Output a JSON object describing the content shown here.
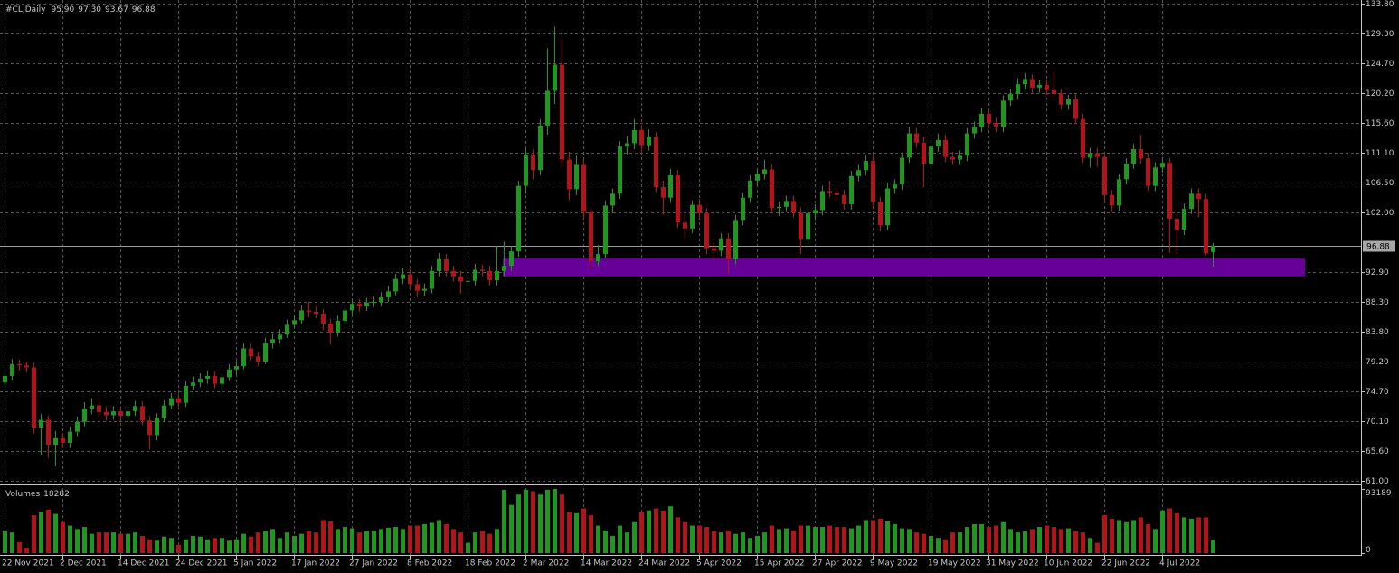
{
  "chart_data": {
    "type": "candlestick",
    "header": {
      "symbol": "#CL,Daily",
      "values": [
        "95.90",
        "97.30",
        "93.67",
        "96.88"
      ]
    },
    "categories": [
      "22 Nov 2021",
      null,
      null,
      null,
      null,
      null,
      null,
      null,
      "2 Dec 2021",
      null,
      null,
      null,
      null,
      null,
      null,
      null,
      "14 Dec 2021",
      null,
      null,
      null,
      null,
      null,
      null,
      null,
      "24 Dec 2021",
      null,
      null,
      null,
      null,
      null,
      null,
      null,
      "5 Jan 2022",
      null,
      null,
      null,
      null,
      null,
      null,
      null,
      "17 Jan 2022",
      null,
      null,
      null,
      null,
      null,
      null,
      null,
      "27 Jan 2022",
      null,
      null,
      null,
      null,
      null,
      null,
      null,
      "8 Feb 2022",
      null,
      null,
      null,
      null,
      null,
      null,
      null,
      "18 Feb 2022",
      null,
      null,
      null,
      null,
      null,
      null,
      null,
      "2 Mar 2022",
      null,
      null,
      null,
      null,
      null,
      null,
      null,
      "14 Mar 2022",
      null,
      null,
      null,
      null,
      null,
      null,
      null,
      "24 Mar 2022",
      null,
      null,
      null,
      null,
      null,
      null,
      null,
      "5 Apr 2022",
      null,
      null,
      null,
      null,
      null,
      null,
      null,
      "15 Apr 2022",
      null,
      null,
      null,
      null,
      null,
      null,
      null,
      "27 Apr 2022",
      null,
      null,
      null,
      null,
      null,
      null,
      null,
      "9 May 2022",
      null,
      null,
      null,
      null,
      null,
      null,
      null,
      "19 May 2022",
      null,
      null,
      null,
      null,
      null,
      null,
      null,
      "31 May 2022",
      null,
      null,
      null,
      null,
      null,
      null,
      null,
      "10 Jun 2022",
      null,
      null,
      null,
      null,
      null,
      null,
      null,
      "22 Jun 2022",
      null,
      null,
      null,
      null,
      null,
      null,
      null,
      "4 Jul 2022",
      null,
      null,
      null,
      null,
      null,
      null,
      null
    ],
    "open": [
      76.0,
      77.0,
      78.8,
      78.6,
      78.3,
      69.0,
      70.3,
      66.5,
      67.5,
      66.8,
      68.5,
      70.0,
      72.0,
      72.5,
      71.5,
      71.0,
      71.6,
      70.9,
      71.6,
      72.4,
      70.2,
      68.0,
      70.6,
      72.5,
      73.6,
      72.9,
      75.5,
      76.0,
      76.6,
      77.0,
      75.8,
      76.8,
      78.0,
      78.5,
      81.2,
      80.0,
      79.2,
      82.0,
      82.6,
      83.3,
      84.8,
      85.5,
      87.0,
      86.8,
      86.5,
      85.0,
      83.6,
      85.4,
      87.0,
      88.0,
      87.6,
      88.2,
      88.3,
      89.0,
      89.9,
      91.8,
      92.5,
      91.0,
      90.0,
      90.3,
      93.0,
      94.8,
      93.0,
      92.2,
      91.4,
      91.5,
      93.2,
      93.0,
      91.6,
      93.0,
      93.8,
      96.0,
      106.0,
      110.8,
      108.4,
      115.2,
      120.5,
      124.5,
      110.0,
      105.5,
      109.2,
      102.0,
      94.5,
      95.6,
      103.0,
      104.8,
      112.0,
      112.5,
      114.5,
      112.2,
      113.4,
      105.8,
      104.2,
      107.6,
      100.4,
      99.5,
      103.1,
      101.8,
      96.5,
      96.1,
      98.0,
      94.8,
      100.8,
      104.2,
      106.8,
      107.8,
      108.5,
      102.6,
      102.8,
      103.7,
      101.9,
      97.9,
      101.8,
      102.3,
      105.2,
      105.0,
      104.6,
      103.2,
      107.5,
      108.4,
      109.8,
      103.5,
      100.0,
      105.6,
      106.2,
      110.3,
      114.0,
      112.6,
      109.4,
      112.0,
      113.0,
      110.4,
      110.0,
      110.6,
      114.0,
      115.0,
      117.0,
      115.6,
      115.0,
      119.0,
      120.0,
      121.5,
      122.3,
      121.0,
      121.4,
      120.6,
      120.0,
      118.4,
      119.2,
      116.2,
      110.3,
      111.0,
      110.4,
      104.6,
      103.0,
      107.0,
      109.4,
      111.6,
      110.2,
      106.0,
      108.8,
      109.5,
      101.0,
      99.3,
      102.5,
      104.8,
      104.0,
      95.9
    ],
    "high": [
      78.0,
      79.6,
      79.5,
      79.2,
      79.0,
      71.2,
      71.0,
      68.6,
      68.3,
      69.3,
      70.8,
      73.0,
      73.6,
      73.4,
      72.3,
      72.4,
      72.4,
      72.3,
      73.2,
      73.1,
      70.9,
      71.3,
      73.3,
      74.4,
      74.3,
      76.2,
      76.9,
      77.4,
      77.8,
      77.7,
      77.5,
      78.8,
      79.3,
      82.0,
      81.9,
      80.7,
      82.8,
      83.4,
      84.1,
      85.6,
      86.3,
      87.8,
      88.3,
      87.6,
      87.2,
      85.7,
      86.2,
      87.8,
      88.8,
      88.7,
      88.9,
      89.1,
      89.8,
      90.7,
      92.6,
      93.4,
      93.3,
      91.8,
      91.1,
      93.8,
      95.8,
      95.6,
      93.8,
      93.0,
      92.3,
      94.1,
      94.0,
      93.8,
      96.8,
      97.5,
      96.8,
      106.8,
      111.8,
      111.6,
      116.2,
      127.0,
      130.3,
      128.5,
      111.2,
      110.6,
      110.0,
      102.8,
      97.0,
      103.8,
      105.6,
      112.8,
      113.6,
      116.2,
      115.3,
      114.6,
      114.2,
      106.8,
      108.6,
      108.4,
      101.6,
      103.8,
      104.0,
      102.6,
      97.4,
      98.8,
      98.8,
      101.6,
      105.0,
      107.6,
      108.6,
      110.0,
      109.3,
      103.6,
      104.5,
      104.5,
      102.7,
      102.6,
      103.2,
      106.0,
      106.8,
      105.8,
      105.4,
      108.3,
      109.2,
      110.8,
      110.6,
      104.3,
      106.4,
      107.0,
      111.1,
      115.0,
      114.8,
      113.4,
      112.8,
      114.0,
      113.8,
      111.2,
      111.4,
      114.8,
      115.8,
      117.8,
      117.8,
      116.4,
      119.8,
      120.8,
      122.4,
      123.2,
      123.0,
      122.2,
      122.2,
      123.6,
      120.8,
      119.9,
      120.0,
      117.0,
      111.8,
      111.8,
      111.2,
      105.4,
      107.8,
      110.2,
      112.4,
      113.8,
      111.0,
      109.6,
      110.4,
      110.3,
      101.8,
      103.3,
      105.6,
      105.6,
      104.8,
      97.3
    ],
    "low": [
      75.2,
      76.3,
      77.8,
      77.5,
      68.2,
      65.0,
      64.5,
      63.2,
      66.0,
      66.0,
      67.8,
      69.3,
      71.2,
      70.8,
      70.2,
      70.3,
      70.1,
      70.2,
      70.9,
      69.5,
      65.8,
      67.2,
      70.0,
      72.0,
      72.1,
      72.3,
      74.8,
      75.3,
      75.8,
      75.1,
      75.2,
      76.2,
      77.2,
      78.0,
      79.4,
      78.5,
      78.8,
      81.2,
      81.9,
      82.8,
      84.2,
      84.9,
      86.0,
      85.8,
      84.0,
      81.8,
      83.0,
      84.9,
      86.3,
      86.8,
      86.9,
      87.5,
      87.6,
      88.3,
      89.3,
      91.0,
      90.2,
      89.0,
      89.2,
      89.6,
      92.2,
      92.2,
      91.4,
      89.6,
      90.6,
      90.8,
      92.2,
      90.8,
      90.8,
      92.2,
      93.0,
      95.2,
      104.8,
      107.0,
      107.6,
      113.8,
      118.5,
      108.8,
      103.8,
      104.6,
      101.0,
      93.2,
      93.8,
      95.0,
      101.8,
      104.0,
      110.8,
      111.6,
      111.0,
      111.4,
      105.0,
      101.6,
      103.4,
      99.6,
      98.0,
      98.8,
      101.0,
      95.6,
      94.8,
      95.3,
      92.6,
      94.0,
      100.0,
      103.4,
      106.0,
      107.0,
      101.8,
      101.4,
      102.0,
      101.1,
      95.6,
      97.1,
      100.8,
      101.5,
      104.2,
      103.8,
      102.4,
      102.4,
      106.7,
      107.6,
      102.7,
      99.0,
      99.2,
      104.8,
      105.4,
      109.5,
      111.8,
      105.8,
      108.6,
      111.2,
      109.6,
      109.2,
      109.2,
      109.8,
      113.2,
      114.2,
      114.8,
      114.2,
      114.2,
      118.2,
      119.2,
      120.7,
      120.2,
      120.2,
      119.8,
      119.2,
      117.6,
      117.6,
      115.4,
      109.5,
      108.8,
      108.9,
      103.8,
      102.0,
      102.2,
      106.2,
      108.6,
      109.4,
      105.2,
      105.2,
      108.0,
      95.8,
      95.5,
      98.5,
      101.7,
      101.2,
      95.4,
      93.67
    ],
    "close": [
      77.0,
      78.8,
      78.6,
      78.3,
      69.0,
      70.3,
      66.5,
      67.5,
      66.8,
      68.5,
      70.0,
      72.0,
      72.5,
      71.5,
      71.0,
      71.6,
      70.9,
      71.6,
      72.4,
      70.2,
      68.0,
      70.6,
      72.5,
      73.6,
      72.9,
      75.5,
      76.0,
      76.6,
      77.0,
      75.8,
      76.8,
      78.0,
      78.5,
      81.2,
      80.0,
      79.2,
      82.0,
      82.6,
      83.3,
      84.8,
      85.5,
      87.0,
      86.8,
      86.5,
      85.0,
      83.6,
      85.4,
      87.0,
      88.0,
      87.6,
      88.2,
      88.3,
      89.0,
      89.9,
      91.8,
      92.5,
      91.0,
      90.0,
      90.3,
      93.0,
      94.8,
      93.0,
      92.2,
      91.4,
      91.5,
      93.2,
      93.0,
      91.6,
      93.0,
      93.8,
      96.0,
      106.0,
      110.8,
      108.4,
      115.2,
      120.5,
      124.5,
      110.0,
      105.5,
      109.2,
      102.0,
      94.5,
      95.6,
      103.0,
      104.8,
      112.0,
      112.5,
      114.5,
      112.2,
      113.4,
      105.8,
      104.2,
      107.6,
      100.4,
      99.5,
      103.1,
      101.8,
      96.5,
      96.1,
      98.0,
      94.8,
      100.8,
      104.2,
      106.8,
      107.8,
      108.5,
      102.6,
      102.8,
      103.7,
      101.9,
      97.9,
      101.8,
      102.3,
      105.2,
      105.0,
      104.6,
      103.2,
      107.5,
      108.4,
      109.8,
      103.5,
      100.0,
      105.6,
      106.2,
      110.3,
      114.0,
      112.6,
      109.4,
      112.0,
      113.0,
      110.4,
      110.0,
      110.6,
      114.0,
      115.0,
      117.0,
      115.6,
      115.0,
      119.0,
      120.0,
      121.5,
      122.3,
      121.0,
      121.4,
      120.6,
      120.0,
      118.4,
      119.2,
      116.2,
      110.3,
      111.0,
      110.4,
      104.6,
      103.0,
      107.0,
      109.4,
      111.6,
      110.2,
      106.0,
      108.8,
      109.5,
      101.0,
      99.3,
      102.5,
      104.8,
      104.0,
      95.7,
      96.88
    ],
    "volume_title": "Volumes",
    "volumes": [
      33000,
      30000,
      16000,
      8000,
      55000,
      60000,
      63000,
      57000,
      45000,
      40000,
      35000,
      38000,
      28000,
      30000,
      30000,
      30000,
      28000,
      28000,
      30000,
      25000,
      20000,
      18000,
      24000,
      22000,
      12000,
      20000,
      25000,
      24000,
      20000,
      22000,
      22000,
      18000,
      20000,
      28000,
      24000,
      30000,
      32000,
      35000,
      22000,
      30000,
      25000,
      28000,
      32000,
      30000,
      48000,
      46000,
      35000,
      38000,
      36000,
      30000,
      32000,
      33000,
      35000,
      37000,
      38000,
      35000,
      40000,
      40000,
      42000,
      44000,
      48000,
      42000,
      35000,
      30000,
      15000,
      30000,
      32000,
      28000,
      35000,
      92000,
      70000,
      85000,
      92000,
      90000,
      85000,
      92000,
      93189,
      85000,
      60000,
      58000,
      65000,
      55000,
      40000,
      33000,
      25000,
      40000,
      30000,
      45000,
      60000,
      62000,
      65000,
      62000,
      68000,
      52000,
      45000,
      40000,
      40000,
      38000,
      32000,
      30000,
      33000,
      28000,
      30000,
      22000,
      25000,
      30000,
      40000,
      35000,
      36000,
      33000,
      40000,
      40000,
      38000,
      38000,
      40000,
      38000,
      38000,
      36000,
      40000,
      48000,
      48000,
      50000,
      46000,
      42000,
      36000,
      35000,
      30000,
      28000,
      25000,
      22000,
      20000,
      30000,
      30000,
      38000,
      42000,
      42000,
      38000,
      40000,
      45000,
      35000,
      30000,
      32000,
      35000,
      38000,
      40000,
      38000,
      35000,
      36000,
      32000,
      30000,
      22000,
      15000,
      55000,
      50000,
      48000,
      45000,
      48000,
      52000,
      42000,
      35000,
      62000,
      65000,
      58000,
      52000,
      50000,
      52000,
      52000,
      18282
    ],
    "up_color": "#1d9a1d",
    "down_color": "#b3141b",
    "ylim": [
      61.0,
      133.8
    ],
    "yticks": [
      {
        "value": 133.8,
        "label": "133.80"
      },
      {
        "value": 129.3,
        "label": "129.30"
      },
      {
        "value": 124.7,
        "label": "124.70"
      },
      {
        "value": 120.2,
        "label": "120.20"
      },
      {
        "value": 115.6,
        "label": "115.60"
      },
      {
        "value": 111.1,
        "label": "111.10"
      },
      {
        "value": 106.5,
        "label": "106.50"
      },
      {
        "value": 102,
        "label": "102.00"
      },
      {
        "value": 92.9,
        "label": "92.90"
      },
      {
        "value": 88.3,
        "label": "88.30"
      },
      {
        "value": 83.8,
        "label": "83.80"
      },
      {
        "value": 79.2,
        "label": "79.20"
      },
      {
        "value": 74.7,
        "label": "74.70"
      },
      {
        "value": 70.1,
        "label": "70.10"
      },
      {
        "value": 65.6,
        "label": "65.60"
      },
      {
        "value": 61,
        "label": "61.00"
      }
    ],
    "volume_ylim": [
      0,
      93189
    ],
    "volume_yticks": [
      93189,
      0
    ],
    "grid": true,
    "zone": {
      "low": 92.2,
      "high": 94.9,
      "color": "#660099"
    }
  }
}
